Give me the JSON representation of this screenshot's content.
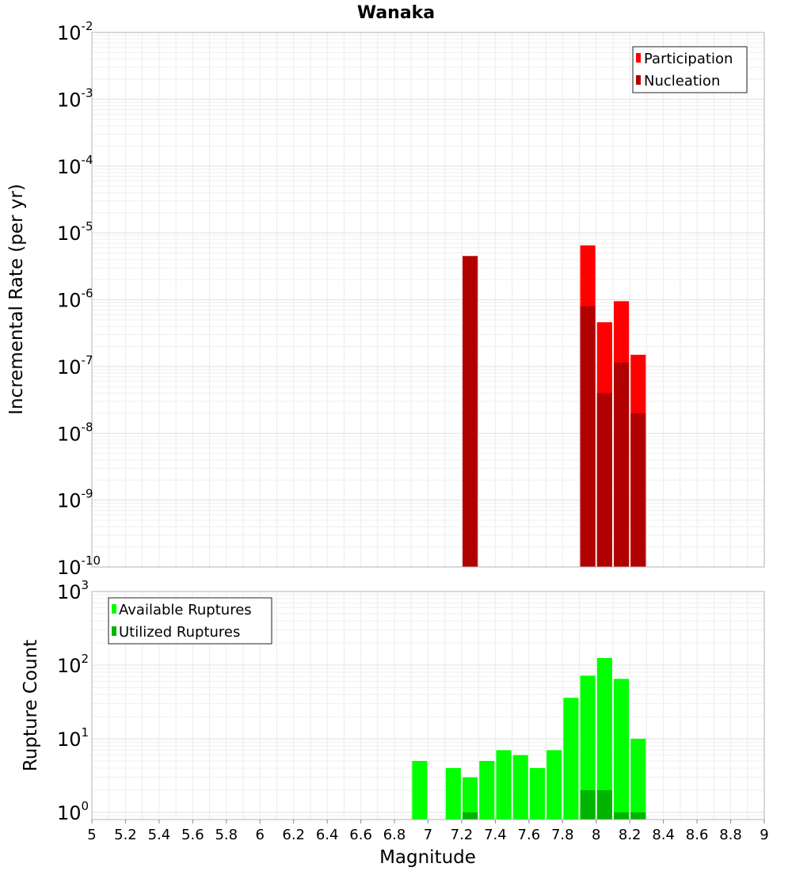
{
  "chart_data": [
    {
      "type": "bar",
      "title": "Wanaka",
      "xlabel": "",
      "ylabel": "Incremental Rate (per yr)",
      "yscale": "log",
      "ylim": [
        1e-10,
        0.01
      ],
      "xlim": [
        5,
        9
      ],
      "grid": true,
      "legend_position": "top-right",
      "y_ticks": [
        {
          "base": "10",
          "exp": "-2"
        },
        {
          "base": "10",
          "exp": "-3"
        },
        {
          "base": "10",
          "exp": "-4"
        },
        {
          "base": "10",
          "exp": "-5"
        },
        {
          "base": "10",
          "exp": "-6"
        },
        {
          "base": "10",
          "exp": "-7"
        },
        {
          "base": "10",
          "exp": "-8"
        },
        {
          "base": "10",
          "exp": "-9"
        },
        {
          "base": "10",
          "exp": "-10"
        }
      ],
      "series": [
        {
          "name": "Participation",
          "color": "#ff0000",
          "points": [
            {
              "x": 7.25,
              "y": 4.5e-06
            },
            {
              "x": 7.95,
              "y": 6.5e-06
            },
            {
              "x": 8.05,
              "y": 4.6e-07
            },
            {
              "x": 8.15,
              "y": 9.5e-07
            },
            {
              "x": 8.25,
              "y": 1.5e-07
            }
          ]
        },
        {
          "name": "Nucleation",
          "color": "#b00000",
          "points": [
            {
              "x": 7.25,
              "y": 4.5e-06
            },
            {
              "x": 7.95,
              "y": 8e-07
            },
            {
              "x": 8.05,
              "y": 4e-08
            },
            {
              "x": 8.15,
              "y": 1.15e-07
            },
            {
              "x": 8.25,
              "y": 2e-08
            }
          ]
        }
      ]
    },
    {
      "type": "bar",
      "title": "",
      "xlabel": "Magnitude",
      "ylabel": "Rupture Count",
      "yscale": "log",
      "ylim": [
        0.8,
        1000
      ],
      "xlim": [
        5,
        9
      ],
      "grid": true,
      "legend_position": "top-left",
      "x_ticks": [
        "5",
        "5.2",
        "5.4",
        "5.6",
        "5.8",
        "6",
        "6.2",
        "6.4",
        "6.6",
        "6.8",
        "7",
        "7.2",
        "7.4",
        "7.6",
        "7.8",
        "8",
        "8.2",
        "8.4",
        "8.6",
        "8.8",
        "9"
      ],
      "y_ticks": [
        {
          "base": "10",
          "exp": "3"
        },
        {
          "base": "10",
          "exp": "2"
        },
        {
          "base": "10",
          "exp": "1"
        },
        {
          "base": "10",
          "exp": "0"
        }
      ],
      "series": [
        {
          "name": "Available Ruptures",
          "color": "#00ff00",
          "points": [
            {
              "x": 6.95,
              "y": 5
            },
            {
              "x": 7.15,
              "y": 4
            },
            {
              "x": 7.25,
              "y": 3
            },
            {
              "x": 7.35,
              "y": 5
            },
            {
              "x": 7.45,
              "y": 7
            },
            {
              "x": 7.55,
              "y": 6
            },
            {
              "x": 7.65,
              "y": 4
            },
            {
              "x": 7.75,
              "y": 7
            },
            {
              "x": 7.85,
              "y": 36
            },
            {
              "x": 7.95,
              "y": 72
            },
            {
              "x": 8.05,
              "y": 125
            },
            {
              "x": 8.15,
              "y": 65
            },
            {
              "x": 8.25,
              "y": 10
            }
          ]
        },
        {
          "name": "Utilized Ruptures",
          "color": "#00b400",
          "points": [
            {
              "x": 7.25,
              "y": 1
            },
            {
              "x": 7.95,
              "y": 2
            },
            {
              "x": 8.05,
              "y": 2
            },
            {
              "x": 8.15,
              "y": 1
            },
            {
              "x": 8.25,
              "y": 1
            }
          ]
        }
      ]
    }
  ]
}
